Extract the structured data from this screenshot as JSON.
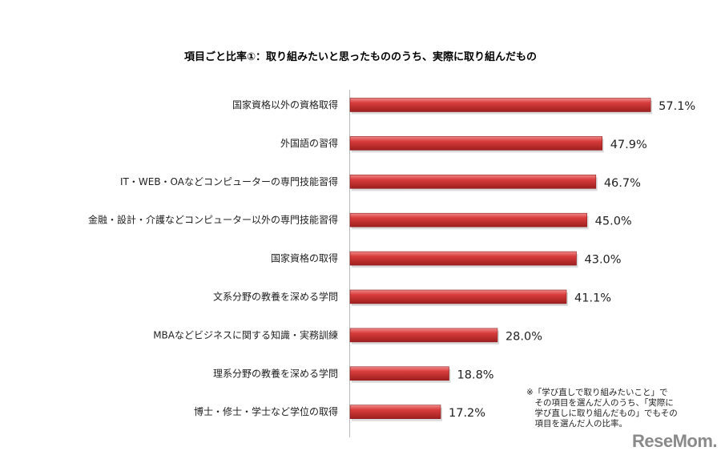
{
  "chart_data": {
    "type": "bar",
    "orientation": "horizontal",
    "title": "項目ごと比率①：取り組みたいと思ったもののうち、実際に取り組んだもの",
    "categories": [
      "国家資格以外の資格取得",
      "外国語の習得",
      "IT・WEB・OAなどコンピューターの専門技能習得",
      "金融・設計・介護などコンピューター以外の専門技能習得",
      "国家資格の取得",
      "文系分野の教養を深める学問",
      "MBAなどビジネスに関する知識・実務訓練",
      "理系分野の教養を深める学問",
      "博士・修士・学士など学位の取得"
    ],
    "values": [
      57.1,
      47.9,
      46.7,
      45.0,
      43.0,
      41.1,
      28.0,
      18.8,
      17.2
    ],
    "value_labels": [
      "57.1%",
      "47.9%",
      "46.7%",
      "45.0%",
      "43.0%",
      "41.1%",
      "28.0%",
      "18.8%",
      "17.2%"
    ],
    "xlim": [
      0,
      70
    ],
    "grid": false,
    "bar_color": "#d23a3a"
  },
  "note": {
    "lines": [
      "※「学び直しで取り組みたいこと」で",
      "　その項目を選んだ人のうち、「実際に",
      "　学び直しに取り組んだもの」でもその",
      "　項目を選んだ人の比率。"
    ]
  },
  "logo": "ReseMom."
}
